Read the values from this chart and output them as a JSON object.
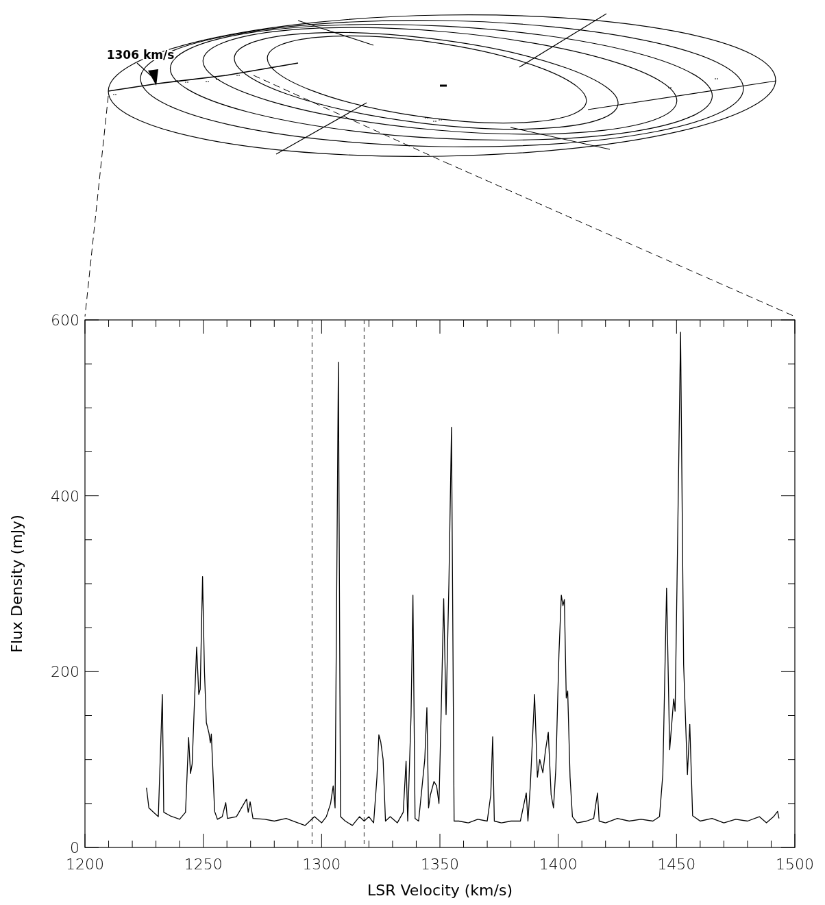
{
  "chart_data": {
    "type": "line",
    "xlabel": "LSR Velocity (km/s)",
    "ylabel": "Flux Density (mJy)",
    "annotations": [
      "1306 km/s"
    ],
    "xlim": [
      1200,
      1500
    ],
    "ylim": [
      0,
      600
    ],
    "xticks": [
      1200,
      {
        "value": 1210,
        "label": null
      },
      {
        "value": 1220,
        "label": null
      },
      {
        "value": 1230,
        "label": null
      },
      {
        "value": 1240,
        "label": null
      },
      1250,
      {
        "value": 1260,
        "label": null
      },
      {
        "value": 1270,
        "label": null
      },
      {
        "value": 1280,
        "label": null
      },
      {
        "value": 1290,
        "label": null
      },
      1300,
      {
        "value": 1310,
        "label": null
      },
      {
        "value": 1320,
        "label": null
      },
      {
        "value": 1330,
        "label": null
      },
      {
        "value": 1340,
        "label": null
      },
      1350,
      {
        "value": 1360,
        "label": null
      },
      {
        "value": 1370,
        "label": null
      },
      {
        "value": 1380,
        "label": null
      },
      {
        "value": 1390,
        "label": null
      },
      1400,
      {
        "value": 1410,
        "label": null
      },
      {
        "value": 1420,
        "label": null
      },
      {
        "value": 1430,
        "label": null
      },
      {
        "value": 1440,
        "label": null
      },
      1450,
      {
        "value": 1460,
        "label": null
      },
      {
        "value": 1470,
        "label": null
      },
      {
        "value": 1480,
        "label": null
      },
      {
        "value": 1490,
        "label": null
      },
      1500
    ],
    "yticks": [
      0,
      {
        "value": 50,
        "label": null
      },
      {
        "value": 100,
        "label": null
      },
      {
        "value": 150,
        "label": null
      },
      200,
      {
        "value": 250,
        "label": null
      },
      {
        "value": 300,
        "label": null
      },
      {
        "value": 350,
        "label": null
      },
      400,
      {
        "value": 450,
        "label": null
      },
      {
        "value": 500,
        "label": null
      },
      {
        "value": 550,
        "label": null
      },
      600
    ],
    "grid": false,
    "marker": "none",
    "line_style": "solid",
    "ref_lines": [
      {
        "axis": "x",
        "value": 1296,
        "label": null,
        "color": "#555555",
        "line_style": "dashed"
      },
      {
        "axis": "x",
        "value": 1318,
        "label": null,
        "color": "#555555",
        "line_style": "dashed"
      }
    ],
    "series": [
      {
        "color": "#000000",
        "x": [
          1226,
          1227,
          1229,
          1231,
          1232.7,
          1233.3,
          1236,
          1240,
          1242.5,
          1243.8,
          1244.6,
          1245.3,
          1246.2,
          1247.2,
          1248.1,
          1248.7,
          1249.7,
          1250.5,
          1251.3,
          1252.4,
          1253,
          1253.4,
          1254.8,
          1256,
          1258,
          1259.5,
          1260.2,
          1264,
          1268.3,
          1269,
          1269.8,
          1271,
          1276,
          1280,
          1285,
          1290,
          1293,
          1297,
          1300,
          1302,
          1303.8,
          1304.9,
          1305.7,
          1307.1,
          1308,
          1310,
          1313,
          1316,
          1318,
          1320,
          1322,
          1323.4,
          1324.2,
          1325,
          1326,
          1327,
          1329,
          1332,
          1334.5,
          1335.7,
          1336.4,
          1337.8,
          1338.6,
          1339.5,
          1341,
          1343.6,
          1344.5,
          1345.2,
          1346,
          1347.5,
          1348.6,
          1349.6,
          1350.5,
          1351.6,
          1352.6,
          1353.8,
          1354.9,
          1356,
          1358,
          1362,
          1366,
          1370,
          1371.5,
          1372.3,
          1373,
          1376,
          1380,
          1384,
          1386.5,
          1387.2,
          1388.2,
          1390,
          1391.2,
          1392.2,
          1393.5,
          1394.6,
          1395.8,
          1397,
          1398,
          1399,
          1400.3,
          1401.3,
          1402,
          1402.6,
          1403.4,
          1404,
          1405,
          1406,
          1408,
          1412,
          1415,
          1416.6,
          1417.3,
          1420,
          1425,
          1430,
          1435,
          1440,
          1442.8,
          1444.2,
          1445.8,
          1447.1,
          1448.8,
          1449.4,
          1450.2,
          1451.7,
          1453,
          1454.6,
          1455.6,
          1456.8,
          1460,
          1465,
          1470,
          1475,
          1480,
          1485,
          1488,
          1491,
          1492.7,
          1493.3
        ],
        "values": [
          68,
          45,
          40,
          35,
          174,
          40,
          36,
          32,
          40,
          125,
          84,
          95,
          160,
          228,
          174,
          180,
          308,
          200,
          142,
          130,
          119,
          129,
          41,
          32,
          35,
          51,
          33,
          35,
          55,
          40,
          52,
          33,
          32,
          30,
          33,
          28,
          25,
          35,
          28,
          35,
          50,
          70,
          45,
          552,
          35,
          30,
          25,
          35,
          30,
          35,
          28,
          80,
          128,
          120,
          100,
          30,
          35,
          28,
          40,
          98,
          30,
          150,
          287,
          33,
          30,
          100,
          159,
          45,
          60,
          75,
          70,
          50,
          150,
          283,
          151,
          300,
          478,
          30,
          30,
          28,
          32,
          30,
          60,
          126,
          30,
          28,
          30,
          30,
          62,
          30,
          70,
          174,
          80,
          100,
          85,
          110,
          131,
          60,
          45,
          90,
          220,
          287,
          275,
          282,
          170,
          178,
          80,
          35,
          28,
          30,
          33,
          62,
          30,
          28,
          33,
          30,
          32,
          30,
          35,
          83,
          295,
          111,
          169,
          155,
          300,
          586,
          208,
          83,
          140,
          36,
          30,
          33,
          28,
          32,
          30,
          35,
          28,
          35,
          41,
          33
        ]
      }
    ]
  }
}
